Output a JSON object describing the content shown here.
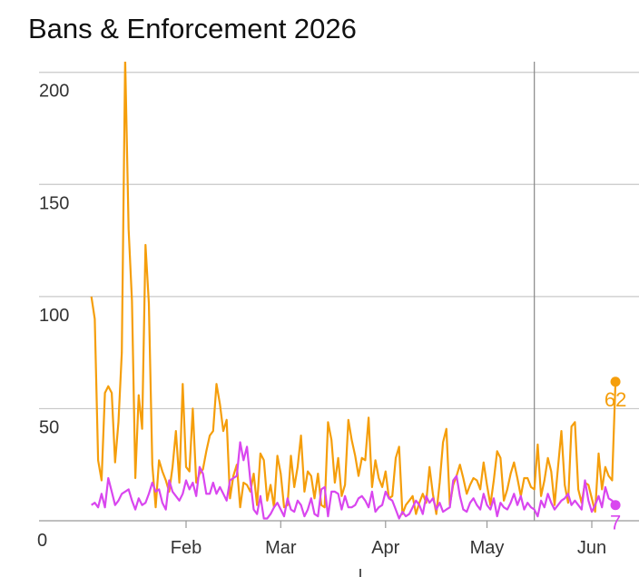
{
  "chart_data": {
    "type": "line",
    "title": "Bans & Enforcement 2026",
    "xlabel": "",
    "ylabel": "",
    "x_start": "2026-01-04",
    "x_end": "2026-05-15",
    "xlim": [
      "2026-01-01",
      "2026-06-12"
    ],
    "ylim": [
      0,
      210
    ],
    "grid": "horizontal",
    "y_ticks": [
      0,
      50,
      100,
      150,
      200
    ],
    "x_ticks": [
      {
        "label": "Feb",
        "date": "2026-02-01"
      },
      {
        "label": "Mar",
        "date": "2026-03-01"
      },
      {
        "label": "Apr",
        "date": "2026-04-01"
      },
      {
        "label": "May",
        "date": "2026-05-01"
      },
      {
        "label": "Jun",
        "date": "2026-06-01"
      }
    ],
    "crosshair_date": "2026-05-15",
    "series": [
      {
        "color": "#f59e0b",
        "end_label": "62",
        "values": [
          100,
          90,
          27,
          18,
          57,
          60,
          57,
          26,
          44,
          75,
          206,
          130,
          98,
          19,
          56,
          41,
          123,
          97,
          25,
          6,
          27,
          22,
          18,
          13,
          24,
          40,
          17,
          61,
          24,
          22,
          50,
          17,
          21,
          23,
          31,
          38,
          40,
          61,
          52,
          40,
          45,
          10,
          20,
          25,
          6,
          17,
          16,
          13,
          21,
          7,
          30,
          27,
          9,
          16,
          6,
          29,
          21,
          6,
          7,
          29,
          15,
          24,
          38,
          13,
          22,
          20,
          10,
          21,
          7,
          6,
          44,
          36,
          17,
          28,
          11,
          16,
          45,
          36,
          29,
          20,
          28,
          27,
          46,
          15,
          27,
          19,
          15,
          22,
          10,
          11,
          28,
          33,
          3,
          7,
          9,
          11,
          3,
          8,
          12,
          8,
          24,
          12,
          3,
          17,
          35,
          41,
          7,
          16,
          20,
          25,
          19,
          12,
          16,
          19,
          18,
          14,
          26,
          16,
          7,
          18,
          31,
          28,
          9,
          14,
          21,
          26,
          19,
          11,
          19,
          19,
          15,
          14,
          34,
          11,
          18,
          28,
          22,
          7,
          24,
          40,
          16,
          8,
          42,
          44,
          14,
          8,
          17,
          16,
          10,
          4,
          30,
          14,
          24,
          20,
          18,
          62
        ]
      },
      {
        "color": "#d946ef",
        "end_label": "7",
        "values": [
          7,
          8,
          6,
          12,
          6,
          19,
          13,
          7,
          9,
          12,
          13,
          14,
          9,
          5,
          10,
          7,
          8,
          12,
          17,
          13,
          14,
          8,
          5,
          18,
          13,
          11,
          9,
          12,
          18,
          14,
          17,
          11,
          24,
          21,
          12,
          12,
          17,
          12,
          15,
          12,
          9,
          18,
          19,
          20,
          35,
          27,
          33,
          18,
          5,
          3,
          11,
          1,
          1,
          3,
          6,
          8,
          5,
          2,
          10,
          5,
          4,
          9,
          7,
          2,
          5,
          10,
          3,
          2,
          14,
          15,
          2,
          13,
          13,
          12,
          5,
          11,
          6,
          6,
          7,
          10,
          11,
          9,
          6,
          13,
          4,
          6,
          7,
          13,
          10,
          9,
          5,
          1,
          4,
          2,
          3,
          6,
          9,
          7,
          3,
          11,
          8,
          10,
          5,
          8,
          4,
          5,
          6,
          18,
          20,
          11,
          5,
          4,
          8,
          10,
          7,
          5,
          12,
          7,
          5,
          10,
          2,
          8,
          6,
          5,
          8,
          12,
          7,
          11,
          5,
          8,
          6,
          5,
          2,
          9,
          6,
          12,
          8,
          5,
          7,
          9,
          10,
          12,
          7,
          9,
          7,
          5,
          18,
          9,
          4,
          7,
          11,
          6,
          15,
          10,
          9,
          7
        ]
      }
    ]
  }
}
